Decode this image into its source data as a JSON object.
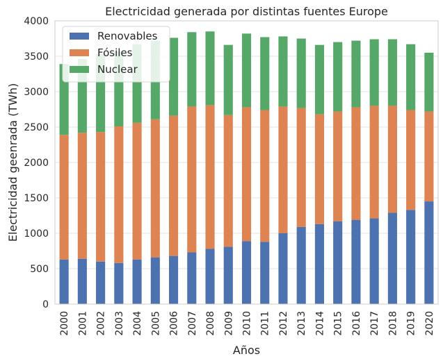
{
  "chart_data": {
    "type": "bar",
    "stacked": true,
    "title": "Electricidad generada por distintas fuentes Europe",
    "xlabel": "Años",
    "ylabel": "Electricidad geenrada (TWh)",
    "ylim": [
      0,
      4000
    ],
    "yticks": [
      0,
      500,
      1000,
      1500,
      2000,
      2500,
      3000,
      3500,
      4000
    ],
    "grid": true,
    "legend_position": "top-left",
    "categories": [
      "2000",
      "2001",
      "2002",
      "2003",
      "2004",
      "2005",
      "2006",
      "2007",
      "2008",
      "2009",
      "2010",
      "2011",
      "2012",
      "2013",
      "2014",
      "2015",
      "2016",
      "2017",
      "2018",
      "2019",
      "2020"
    ],
    "series": [
      {
        "name": "Renovables",
        "color": "#4c72b0",
        "values": [
          630,
          640,
          600,
          580,
          630,
          660,
          680,
          730,
          780,
          810,
          890,
          880,
          1000,
          1090,
          1130,
          1170,
          1190,
          1210,
          1290,
          1330,
          1450
        ]
      },
      {
        "name": "Fósiles",
        "color": "#dd8452",
        "values": [
          1760,
          1780,
          1830,
          1930,
          1930,
          1950,
          1980,
          2060,
          2030,
          1860,
          1890,
          1860,
          1790,
          1680,
          1550,
          1550,
          1590,
          1590,
          1510,
          1410,
          1270
        ]
      },
      {
        "name": "Nuclear",
        "color": "#55a868",
        "values": [
          1000,
          1040,
          1100,
          1060,
          1110,
          1110,
          1100,
          1050,
          1040,
          990,
          1040,
          1030,
          990,
          980,
          980,
          980,
          940,
          940,
          940,
          930,
          830
        ]
      }
    ]
  }
}
